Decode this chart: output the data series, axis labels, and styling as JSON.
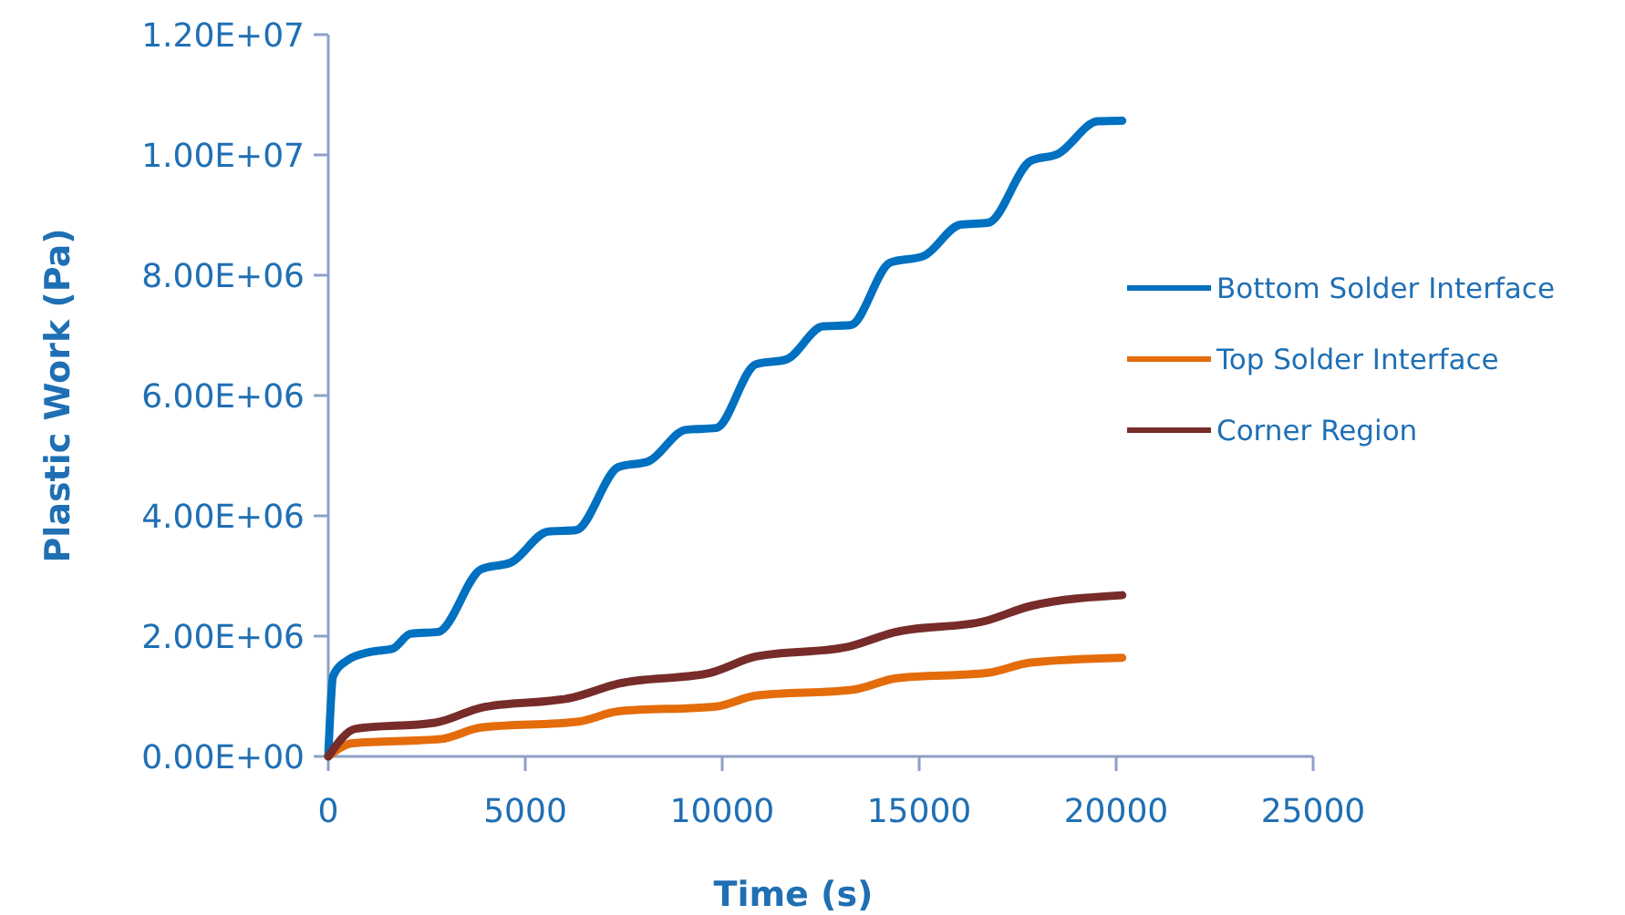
{
  "chart_data": {
    "type": "line",
    "xlabel": "Time (s)",
    "ylabel": "Plastic Work (Pa)",
    "xlim": [
      0,
      25000
    ],
    "xticks": [
      0,
      5000,
      10000,
      15000,
      20000,
      25000
    ],
    "ylim": [
      0,
      12000000
    ],
    "yticks": [
      {
        "value": 0,
        "label": "0.00E+00"
      },
      {
        "value": 2000000,
        "label": "2.00E+06"
      },
      {
        "value": 4000000,
        "label": "4.00E+06"
      },
      {
        "value": 6000000,
        "label": "6.00E+06"
      },
      {
        "value": 8000000,
        "label": "8.00E+06"
      },
      {
        "value": 10000000,
        "label": "1.00E+07"
      },
      {
        "value": 12000000,
        "label": "1.20E+07"
      }
    ],
    "grid": false,
    "legend": "right",
    "marker": "none",
    "line_style": "solid",
    "series": [
      {
        "name": "Bottom Solder Interface",
        "color": "#0070c0",
        "x": [
          0,
          124,
          465,
          1085,
          1628,
          2093,
          2791,
          3876,
          4651,
          5581,
          6279,
          7364,
          8140,
          9070,
          9845,
          10853,
          11628,
          12558,
          13256,
          14264,
          15116,
          16047,
          16744,
          17829,
          18527,
          19535,
          20155
        ],
        "values": [
          0,
          1340000,
          1590000,
          1740000,
          1790000,
          2040000,
          2070000,
          3110000,
          3230000,
          3740000,
          3760000,
          4810000,
          4910000,
          5430000,
          5460000,
          6520000,
          6600000,
          7150000,
          7170000,
          8210000,
          8320000,
          8840000,
          8870000,
          9900000,
          10020000,
          10560000,
          10570000
        ]
      },
      {
        "name": "Top Solder Interface",
        "color": "#e46c0a",
        "x": [
          0,
          620,
          2868,
          3876,
          6357,
          7364,
          9845,
          10853,
          13333,
          14419,
          16744,
          17829,
          20155
        ],
        "values": [
          0,
          220000,
          290000,
          480000,
          580000,
          750000,
          830000,
          1010000,
          1110000,
          1300000,
          1390000,
          1560000,
          1640000
        ]
      },
      {
        "name": "Corner Region",
        "color": "#772c2a",
        "x": [
          0,
          698,
          2713,
          3876,
          6202,
          7364,
          9690,
          10853,
          13178,
          14341,
          16667,
          17829,
          20155
        ],
        "values": [
          0,
          460000,
          560000,
          810000,
          980000,
          1210000,
          1390000,
          1660000,
          1820000,
          2060000,
          2250000,
          2500000,
          2680000
        ]
      }
    ]
  }
}
